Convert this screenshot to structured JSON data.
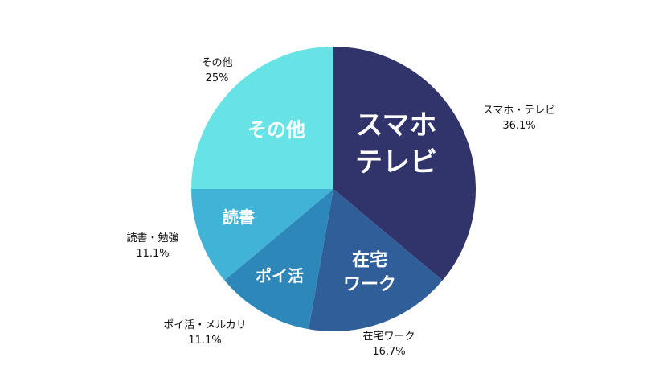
{
  "chart_data": {
    "type": "pie",
    "start_angle_deg": 0,
    "direction": "clockwise",
    "slices": [
      {
        "label": "スマホ・テレビ",
        "percent_label": "36.1%",
        "value": 36.1,
        "inner_lines": [
          "スマホ",
          "テレビ"
        ],
        "color": "#31336b"
      },
      {
        "label": "在宅ワーク",
        "percent_label": "16.7%",
        "value": 16.7,
        "inner_lines": [
          "在宅",
          "ワーク"
        ],
        "color": "#2f5e98"
      },
      {
        "label": "ポイ活・メルカリ",
        "percent_label": "11.1%",
        "value": 11.1,
        "inner_lines": [
          "ポイ活"
        ],
        "color": "#2d87b8"
      },
      {
        "label": "読書・勉強",
        "percent_label": "11.1%",
        "value": 11.1,
        "inner_lines": [
          "読書"
        ],
        "color": "#40b3d6"
      },
      {
        "label": "その他",
        "percent_label": "25%",
        "value": 25,
        "inner_lines": [
          "その他"
        ],
        "color": "#67e3e6"
      }
    ]
  }
}
